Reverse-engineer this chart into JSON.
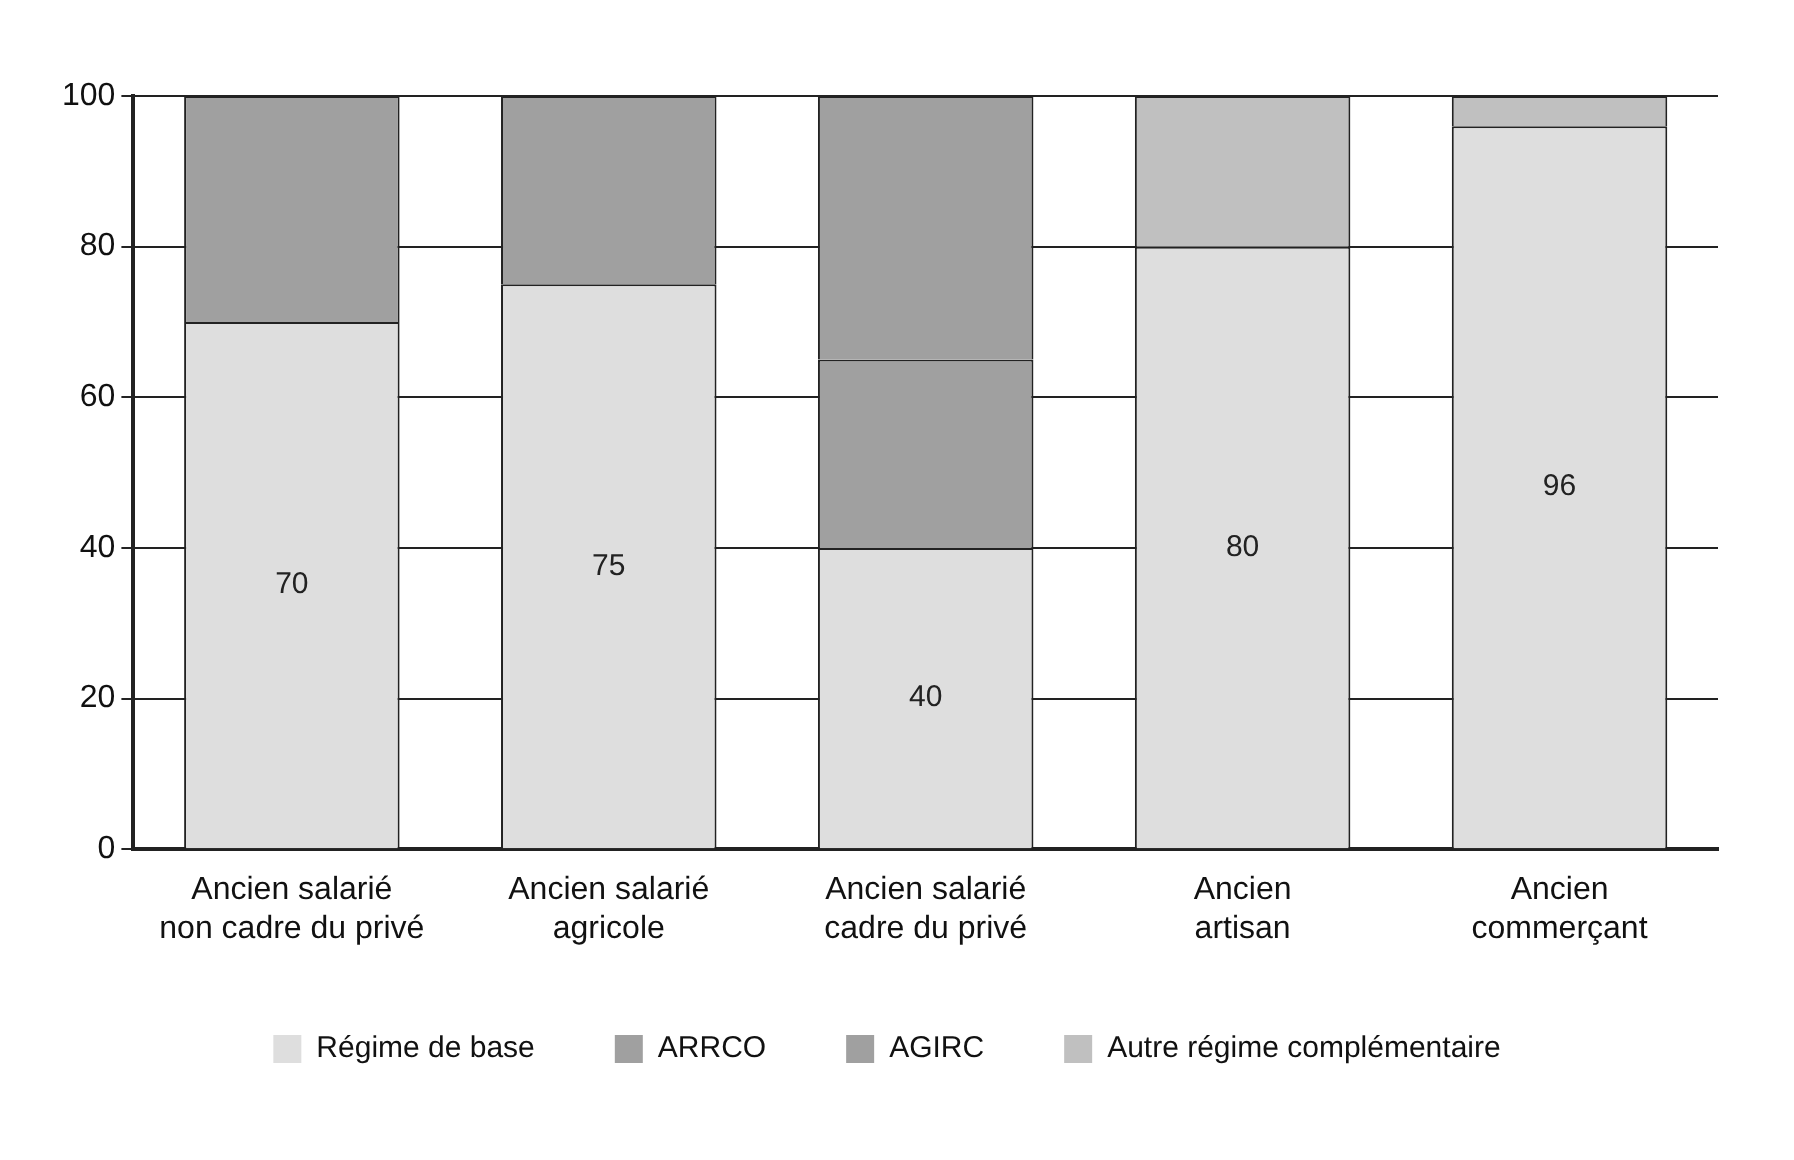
{
  "chart_data": {
    "type": "bar",
    "stacked": true,
    "categories": [
      "Ancien salarié\nnon cadre du privé",
      "Ancien salarié\nagricole",
      "Ancien salarié\ncadre du privé",
      "Ancien\nartisan",
      "Ancien\ncommerçant"
    ],
    "series": [
      {
        "name": "Régime de base",
        "color": "#dedede",
        "values": [
          70,
          75,
          40,
          80,
          96
        ],
        "value_labels": [
          "70",
          "75",
          "40",
          "80",
          "96"
        ]
      },
      {
        "name": "ARRCO",
        "color": "#a0a0a0",
        "values": [
          30,
          25,
          25,
          null,
          null
        ]
      },
      {
        "name": "AGIRC",
        "color": "#a0a0a0",
        "values": [
          null,
          null,
          35,
          null,
          null
        ]
      },
      {
        "name": "Autre régime complémentaire",
        "color": "#c0c0c0",
        "values": [
          null,
          null,
          null,
          20,
          4
        ]
      }
    ],
    "ylim": [
      0,
      100
    ],
    "yticks": [
      0,
      20,
      40,
      60,
      80,
      100
    ],
    "grid": "y",
    "legend": "bottom"
  }
}
